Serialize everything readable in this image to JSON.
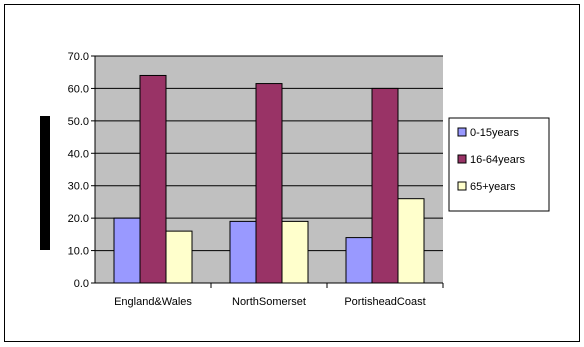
{
  "chart_data": {
    "type": "bar",
    "title": "",
    "xlabel": "",
    "ylabel": "",
    "categories": [
      "England&Wales",
      "NorthSomerset",
      "PortisheadCoast"
    ],
    "series": [
      {
        "name": "0-15years",
        "values": [
          20.0,
          19.0,
          14.0
        ],
        "color": "#9999ff"
      },
      {
        "name": "16-64years",
        "values": [
          64.0,
          61.5,
          60.0
        ],
        "color": "#993366"
      },
      {
        "name": "65+years",
        "values": [
          16.0,
          19.0,
          26.0
        ],
        "color": "#ffffcc"
      }
    ],
    "ylim": [
      0,
      70
    ],
    "yticks": [
      "0.0",
      "10.0",
      "20.0",
      "30.0",
      "40.0",
      "50.0",
      "60.0",
      "70.0"
    ],
    "grid": true,
    "plot_background": "#c0c0c0",
    "legend_position": "right"
  }
}
